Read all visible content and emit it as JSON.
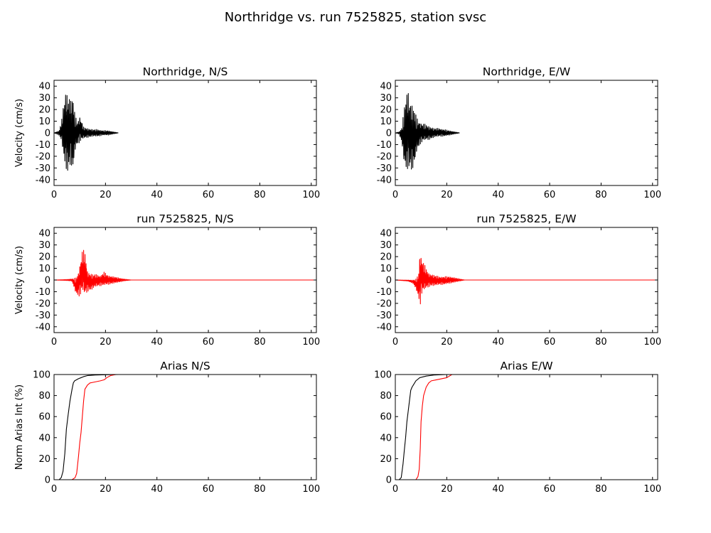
{
  "figure": {
    "title": "Northridge vs. run 7525825, station svsc"
  },
  "colors": {
    "recorded": "#000000",
    "simulated": "#ff0000",
    "background": "#ffffff"
  },
  "chart_data": [
    {
      "type": "line",
      "title": "Northridge, N/S",
      "xlabel": "",
      "ylabel": "Velocity (cm/s)",
      "xlim": [
        0,
        102
      ],
      "ylim": [
        -45,
        45
      ],
      "xticks": [
        "0",
        "20",
        "40",
        "60",
        "80",
        "100"
      ],
      "yticks": [
        "40",
        "30",
        "20",
        "10",
        "0",
        "-10",
        "-20",
        "-30",
        "-40"
      ],
      "series": [
        {
          "color": "#000000",
          "waveform": true,
          "duration": 25,
          "x": [
            0,
            2,
            3,
            4,
            4.8,
            5.2,
            6,
            6.6,
            7.3,
            8,
            9,
            10,
            11.5,
            13,
            15,
            17,
            19,
            21,
            23,
            25
          ],
          "y": [
            0,
            2,
            12,
            30,
            40,
            33,
            34,
            28,
            34,
            18,
            10,
            15,
            5,
            4,
            3,
            3,
            2,
            2,
            1,
            0
          ],
          "y_min": [
            0,
            -2,
            -8,
            -28,
            -32,
            -36,
            -30,
            -27,
            -37,
            -18,
            -10,
            -8,
            -5,
            -4,
            -3,
            -3,
            -2,
            -2,
            -1,
            0
          ]
        }
      ]
    },
    {
      "type": "line",
      "title": "Northridge, E/W",
      "xlabel": "",
      "ylabel": "",
      "xlim": [
        0,
        102
      ],
      "ylim": [
        -45,
        45
      ],
      "xticks": [
        "0",
        "20",
        "40",
        "60",
        "80",
        "100"
      ],
      "yticks": [
        "40",
        "30",
        "20",
        "10",
        "0",
        "-10",
        "-20",
        "-30",
        "-40"
      ],
      "series": [
        {
          "color": "#000000",
          "waveform": true,
          "duration": 25,
          "x": [
            0,
            1.5,
            2.5,
            3.5,
            4.3,
            5,
            5.5,
            6.5,
            7.3,
            8.2,
            9.5,
            11,
            13,
            15,
            17,
            19,
            21,
            23,
            25
          ],
          "y": [
            0,
            1,
            5,
            22,
            36,
            38,
            30,
            25,
            22,
            14,
            10,
            8,
            6,
            4,
            4,
            3,
            2,
            1,
            0
          ],
          "y_min": [
            0,
            -1,
            -8,
            -30,
            -35,
            -30,
            -32,
            -33,
            -30,
            -18,
            -10,
            -7,
            -6,
            -4,
            -3,
            -3,
            -2,
            -1,
            0
          ]
        }
      ]
    },
    {
      "type": "line",
      "title": "run 7525825, N/S",
      "xlabel": "",
      "ylabel": "Velocity (cm/s)",
      "xlim": [
        0,
        102
      ],
      "ylim": [
        -45,
        45
      ],
      "xticks": [
        "0",
        "20",
        "40",
        "60",
        "80",
        "100"
      ],
      "yticks": [
        "40",
        "30",
        "20",
        "10",
        "0",
        "-10",
        "-20",
        "-30",
        "-40"
      ],
      "series": [
        {
          "color": "#ff0000",
          "waveform": true,
          "duration": 102,
          "x": [
            0,
            5,
            7,
            8.5,
            9.5,
            10.5,
            11,
            12,
            13,
            14,
            15,
            16,
            18,
            19.5,
            21,
            23,
            25,
            27,
            30,
            102
          ],
          "y": [
            0,
            0.5,
            1,
            2,
            8,
            20,
            26,
            25,
            8,
            6,
            5,
            5,
            4,
            7,
            4,
            3,
            2,
            1,
            0,
            0
          ],
          "y_min": [
            0,
            -0.5,
            -1,
            -12,
            -14,
            -13,
            -10,
            -15,
            -10,
            -9,
            -8,
            -6,
            -5,
            -5,
            -4,
            -3,
            -2,
            -1,
            0,
            0
          ]
        }
      ]
    },
    {
      "type": "line",
      "title": "run 7525825, E/W",
      "xlabel": "",
      "ylabel": "",
      "xlim": [
        0,
        102
      ],
      "ylim": [
        -45,
        45
      ],
      "xticks": [
        "0",
        "20",
        "40",
        "60",
        "80",
        "100"
      ],
      "yticks": [
        "40",
        "30",
        "20",
        "10",
        "0",
        "-10",
        "-20",
        "-30",
        "-40"
      ],
      "series": [
        {
          "color": "#ff0000",
          "waveform": true,
          "duration": 102,
          "x": [
            0,
            5,
            7,
            8,
            9,
            9.6,
            10.2,
            11,
            12,
            13,
            14,
            15.5,
            17,
            19,
            21,
            23,
            25,
            27,
            102
          ],
          "y": [
            0,
            0,
            0,
            1,
            5,
            27,
            20,
            15,
            10,
            6,
            5,
            4,
            3,
            3,
            3,
            2,
            1,
            0,
            0
          ],
          "y_min": [
            0,
            -1,
            -3,
            -8,
            -15,
            -23,
            -13,
            -10,
            -8,
            -6,
            -5,
            -5,
            -4,
            -4,
            -3,
            -2,
            -1,
            0,
            0
          ]
        }
      ]
    },
    {
      "type": "line",
      "title": "Arias N/S",
      "xlabel": "",
      "ylabel": "Norm Arias Int (%)",
      "xlim": [
        0,
        102
      ],
      "ylim": [
        0,
        100
      ],
      "xticks": [
        "0",
        "20",
        "40",
        "60",
        "80",
        "100"
      ],
      "yticks": [
        "100",
        "80",
        "60",
        "40",
        "20",
        "0"
      ],
      "series": [
        {
          "color": "#000000",
          "x": [
            0,
            2,
            2.8,
            3.5,
            4.2,
            4.8,
            5.5,
            6.2,
            7,
            7.5,
            8,
            9.5,
            10.5,
            11.5,
            13,
            16,
            20,
            25,
            102
          ],
          "y": [
            0,
            0,
            2,
            8,
            25,
            48,
            62,
            75,
            86,
            92,
            94,
            96,
            97,
            98,
            99,
            99.5,
            99.8,
            100,
            100
          ]
        },
        {
          "color": "#ff0000",
          "x": [
            0,
            7,
            8.2,
            8.8,
            9.5,
            10,
            10.5,
            11,
            11.5,
            12,
            13,
            14,
            16,
            18,
            19.5,
            20.5,
            22,
            24,
            102
          ],
          "y": [
            0,
            0,
            2,
            6,
            22,
            35,
            45,
            60,
            75,
            86,
            90,
            92,
            93,
            94,
            95,
            97,
            99,
            100,
            100
          ]
        }
      ]
    },
    {
      "type": "line",
      "title": "Arias E/W",
      "xlabel": "",
      "ylabel": "",
      "xlim": [
        0,
        102
      ],
      "ylim": [
        0,
        100
      ],
      "xticks": [
        "0",
        "20",
        "40",
        "60",
        "80",
        "100"
      ],
      "yticks": [
        "100",
        "80",
        "60",
        "40",
        "20",
        "0"
      ],
      "series": [
        {
          "color": "#000000",
          "x": [
            0,
            1.5,
            2.3,
            3,
            3.5,
            4,
            4.5,
            5,
            5.5,
            6,
            6.5,
            7,
            8,
            9.5,
            12,
            15,
            20,
            102
          ],
          "y": [
            0,
            0,
            2,
            15,
            28,
            40,
            55,
            65,
            75,
            85,
            88,
            90,
            94,
            97,
            98.5,
            99.5,
            100,
            100
          ]
        },
        {
          "color": "#ff0000",
          "x": [
            0,
            8,
            8.8,
            9.3,
            9.7,
            10,
            10.5,
            11,
            12,
            13,
            14,
            16,
            18,
            20,
            22,
            102
          ],
          "y": [
            0,
            0,
            3,
            10,
            30,
            55,
            70,
            80,
            88,
            92,
            94,
            95,
            96,
            97,
            100,
            100
          ]
        }
      ]
    }
  ]
}
